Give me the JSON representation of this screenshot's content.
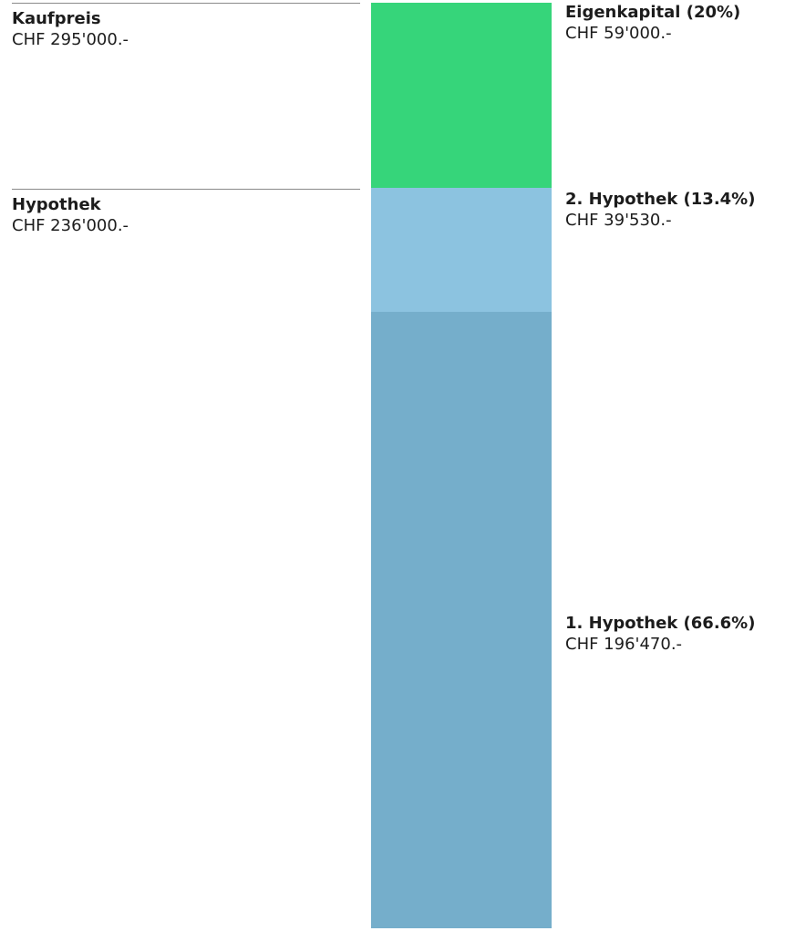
{
  "chart_data": {
    "type": "stacked-bar",
    "total": {
      "label": "Kaufpreis",
      "value_text": "CHF 295'000.-",
      "value": 295000
    },
    "mortgage_total": {
      "label": "Hypothek",
      "value_text": "CHF 236'000.-",
      "value": 236000
    },
    "segments": [
      {
        "label": "Eigenkapital (20%)",
        "value_text": "CHF 59'000.-",
        "value": 59000,
        "color": "#36d57a"
      },
      {
        "label": "2. Hypothek (13.4%)",
        "value_text": "CHF 39'530.-",
        "value": 39530,
        "color": "#8cc3e0"
      },
      {
        "label": "1. Hypothek (66.6%)",
        "value_text": "CHF 196'470.-",
        "value": 196470,
        "color": "#75aecb"
      }
    ]
  }
}
